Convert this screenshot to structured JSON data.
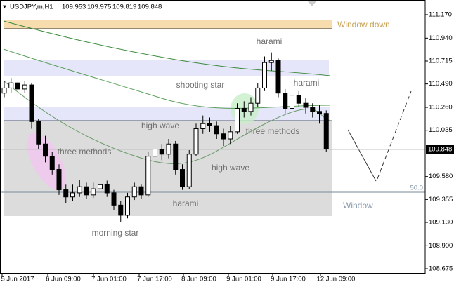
{
  "chart_data": {
    "type": "candlestick",
    "header": {
      "symbol": "USDJPY,m,H1",
      "open": 109.953,
      "high": 109.975,
      "low": 109.819,
      "close": 109.848
    },
    "categories": [
      "5 Jun 2017",
      "6 Jun 09:00",
      "7 Jun 01:00",
      "7 Jun 17:00",
      "8 Jun 09:00",
      "9 Jun 01:00",
      "9 Jun 17:00",
      "12 Jun 09:00"
    ],
    "ylim": [
      108.627,
      111.28
    ],
    "yticks": [
      {
        "value": 111.17,
        "label": "111.170"
      },
      {
        "value": 110.94,
        "label": "110.940"
      },
      110.715,
      {
        "value": 110.49,
        "label": "110.490"
      },
      {
        "value": 110.26,
        "label": "110.260"
      },
      110.035,
      {
        "value": 109.58,
        "label": "109.580"
      },
      109.355,
      {
        "value": 109.13,
        "label": "109.130"
      },
      {
        "value": 108.9,
        "label": "108.900"
      },
      108.675
    ],
    "grid": false,
    "up_color": "#ffffff",
    "down_color": "#000000",
    "series": [
      {
        "name": "USDJPY,m,H1",
        "ohlc": [
          [
            110.4,
            110.52,
            110.36,
            110.45
          ],
          [
            110.45,
            110.55,
            110.4,
            110.5
          ],
          [
            110.5,
            110.53,
            110.4,
            110.44
          ],
          [
            110.44,
            110.52,
            110.4,
            110.48
          ],
          [
            110.48,
            110.5,
            110.05,
            110.12
          ],
          [
            110.12,
            110.15,
            109.85,
            109.9
          ],
          [
            109.9,
            109.98,
            109.72,
            109.78
          ],
          [
            109.78,
            109.82,
            109.6,
            109.65
          ],
          [
            109.65,
            109.7,
            109.4,
            109.45
          ],
          [
            109.45,
            109.5,
            109.32,
            109.38
          ],
          [
            109.38,
            109.5,
            109.34,
            109.42
          ],
          [
            109.42,
            109.55,
            109.38,
            109.48
          ],
          [
            109.48,
            109.52,
            109.36,
            109.4
          ],
          [
            109.4,
            109.52,
            109.37,
            109.46
          ],
          [
            109.46,
            109.56,
            109.42,
            109.5
          ],
          [
            109.5,
            109.54,
            109.38,
            109.42
          ],
          [
            109.42,
            109.45,
            109.25,
            109.3
          ],
          [
            109.3,
            109.34,
            109.13,
            109.2
          ],
          [
            109.2,
            109.42,
            109.17,
            109.38
          ],
          [
            109.38,
            109.52,
            109.35,
            109.48
          ],
          [
            109.48,
            109.5,
            109.36,
            109.4
          ],
          [
            109.4,
            109.82,
            109.38,
            109.78
          ],
          [
            109.78,
            109.9,
            109.74,
            109.85
          ],
          [
            109.85,
            109.9,
            109.74,
            109.8
          ],
          [
            109.8,
            109.95,
            109.76,
            109.9
          ],
          [
            109.9,
            109.93,
            109.6,
            109.65
          ],
          [
            109.65,
            109.7,
            109.45,
            109.48
          ],
          [
            109.48,
            109.84,
            109.46,
            109.8
          ],
          [
            109.8,
            110.1,
            109.78,
            110.05
          ],
          [
            110.05,
            110.18,
            110.0,
            110.1
          ],
          [
            110.1,
            110.16,
            110.02,
            110.08
          ],
          [
            110.08,
            110.12,
            109.95,
            110.0
          ],
          [
            110.0,
            110.05,
            109.88,
            109.95
          ],
          [
            109.95,
            110.08,
            109.9,
            110.02
          ],
          [
            110.02,
            110.3,
            110.0,
            110.25
          ],
          [
            110.25,
            110.32,
            110.16,
            110.22
          ],
          [
            110.22,
            110.36,
            110.18,
            110.3
          ],
          [
            110.3,
            110.5,
            110.26,
            110.45
          ],
          [
            110.45,
            110.76,
            110.42,
            110.7
          ],
          [
            110.7,
            110.8,
            110.62,
            110.72
          ],
          [
            110.72,
            110.74,
            110.36,
            110.4
          ],
          [
            110.4,
            110.44,
            110.2,
            110.25
          ],
          [
            110.25,
            110.42,
            110.22,
            110.38
          ],
          [
            110.38,
            110.42,
            110.26,
            110.3
          ],
          [
            110.3,
            110.35,
            110.2,
            110.26
          ],
          [
            110.26,
            110.3,
            110.16,
            110.22
          ],
          [
            110.22,
            110.28,
            110.1,
            110.2
          ],
          [
            110.2,
            110.23,
            109.82,
            109.85
          ]
        ]
      }
    ],
    "level_label": "50.0",
    "zone_labels": [
      "Window down",
      "Window"
    ],
    "annotations": [
      "harami",
      "harami",
      "shooting star",
      "high wave",
      "three methods",
      "three methods",
      "high wave",
      "harami",
      "morning star"
    ]
  }
}
